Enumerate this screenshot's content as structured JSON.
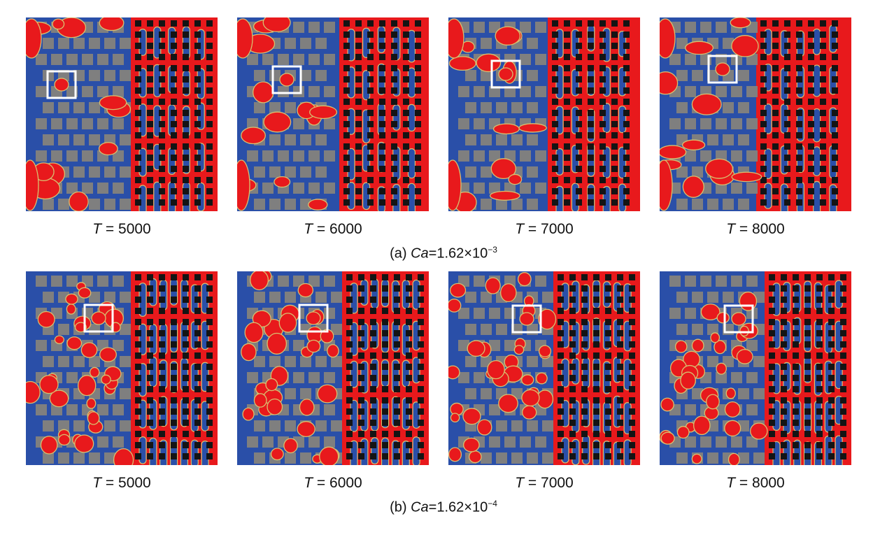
{
  "colors": {
    "wetting": "#2a4fa8",
    "nonwetting": "#e8191c",
    "interface": "#d8c070",
    "solid_gray": "#7f7f7f",
    "solid_black": "#141414",
    "highlight_box": "#ffffff"
  },
  "rows": [
    {
      "caption": {
        "prefix": "(a) ",
        "var": "Ca",
        "eq": "=1.62×10",
        "exp": "−3"
      },
      "seed": 11,
      "panels": [
        {
          "t_var": "T",
          "t_text": " = 5000"
        },
        {
          "t_var": "T",
          "t_text": " = 6000"
        },
        {
          "t_var": "T",
          "t_text": " = 7000"
        },
        {
          "t_var": "T",
          "t_text": " = 8000"
        }
      ]
    },
    {
      "caption": {
        "prefix": "(b) ",
        "var": "Ca",
        "eq": "=1.62×10",
        "exp": "−4"
      },
      "seed": 37,
      "panels": [
        {
          "t_var": "T",
          "t_text": " = 5000"
        },
        {
          "t_var": "T",
          "t_text": " = 6000"
        },
        {
          "t_var": "T",
          "t_text": " = 7000"
        },
        {
          "t_var": "T",
          "t_text": " = 8000"
        }
      ]
    }
  ]
}
